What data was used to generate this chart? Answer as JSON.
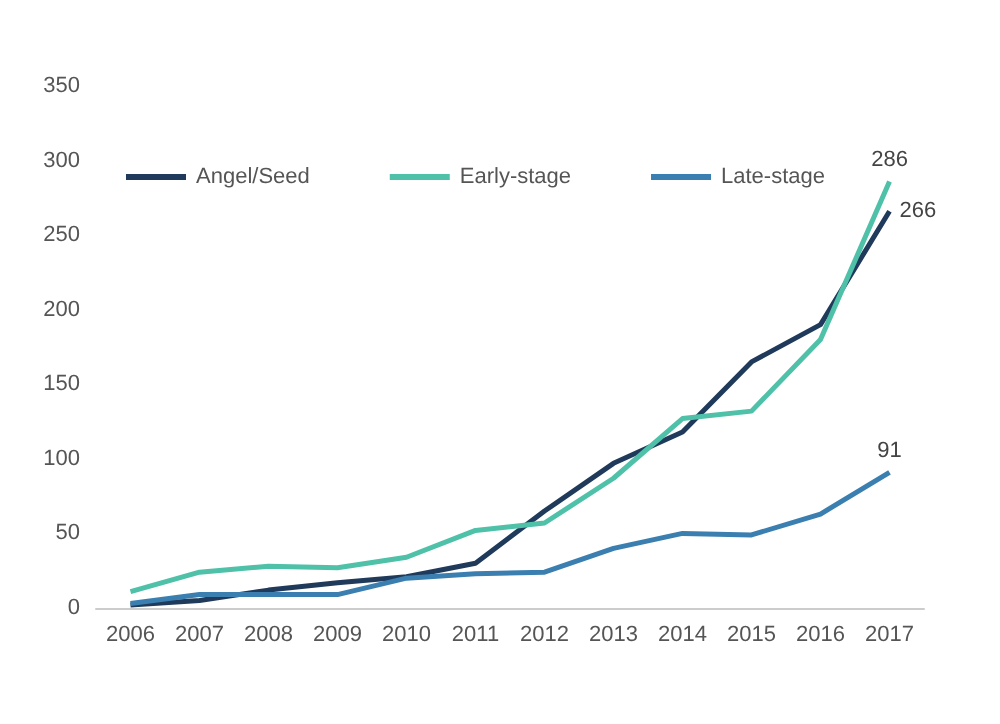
{
  "chart_data": {
    "type": "line",
    "categories": [
      "2006",
      "2007",
      "2008",
      "2009",
      "2010",
      "2011",
      "2012",
      "2013",
      "2014",
      "2015",
      "2016",
      "2017"
    ],
    "series": [
      {
        "name": "Angel/Seed",
        "color": "#1f3a5a",
        "values": [
          2,
          5,
          12,
          17,
          21,
          30,
          65,
          97,
          118,
          165,
          190,
          266
        ],
        "value_labels": [
          null,
          null,
          null,
          null,
          null,
          null,
          null,
          null,
          null,
          null,
          null,
          "266"
        ]
      },
      {
        "name": "Early-stage",
        "color": "#4fc1a9",
        "values": [
          11,
          24,
          28,
          27,
          34,
          52,
          57,
          87,
          127,
          132,
          180,
          286
        ],
        "value_labels": [
          null,
          null,
          null,
          null,
          null,
          null,
          null,
          null,
          null,
          null,
          null,
          "286"
        ]
      },
      {
        "name": "Late-stage",
        "color": "#3a7fb0",
        "values": [
          3,
          9,
          9,
          9,
          20,
          23,
          24,
          40,
          50,
          49,
          63,
          91
        ],
        "value_labels": [
          null,
          null,
          null,
          null,
          null,
          null,
          null,
          null,
          null,
          null,
          null,
          "91"
        ]
      }
    ],
    "ylim": [
      0,
      350
    ],
    "yticks": [
      0,
      50,
      100,
      150,
      200,
      250,
      300,
      350
    ],
    "grid": false,
    "legend": "top left",
    "marker": "none"
  }
}
